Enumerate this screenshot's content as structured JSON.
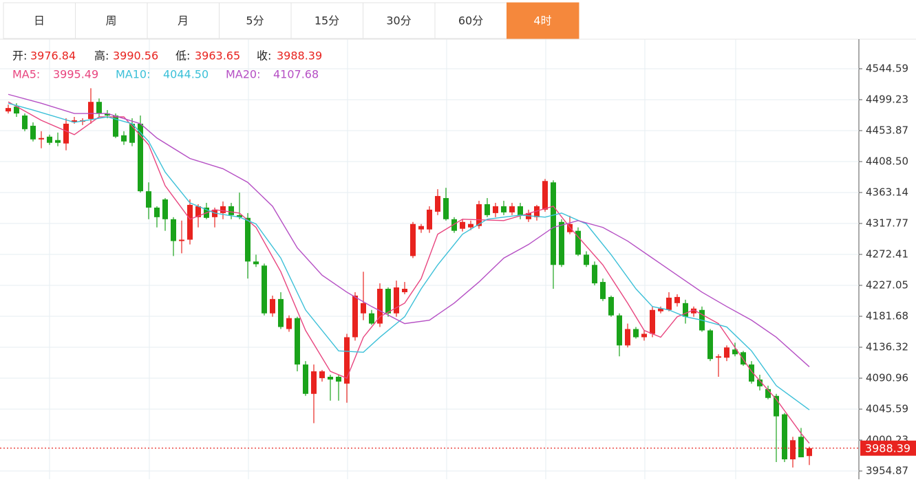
{
  "tabs": {
    "items": [
      "日",
      "周",
      "月",
      "5分",
      "15分",
      "30分",
      "60分",
      "4时"
    ],
    "active": 7,
    "active_color": "#f5883c"
  },
  "info": {
    "open_label": "开:",
    "high_label": "高:",
    "low_label": "低:",
    "close_label": "收:",
    "ma": [
      {
        "label": "MA5:",
        "value": "3995.49"
      },
      {
        "label": "MA10:",
        "value": "4044.50"
      },
      {
        "label": "MA20:",
        "value": "4107.68"
      }
    ]
  },
  "chart_data": {
    "type": "candlestick",
    "up_color": "#e8231f",
    "down_color": "#1aa31a",
    "grid": true,
    "ylim": [
      3942.8,
      4587.9
    ],
    "yticks": [
      4544.59,
      4499.23,
      4453.87,
      {
        "value": 4408.5,
        "label": "4408.50"
      },
      4363.14,
      4317.77,
      4272.41,
      4227.05,
      4181.68,
      4136.32,
      4090.96,
      4045.59,
      4000.23,
      3954.87
    ],
    "ohlc": [
      [
        4482,
        4492,
        4479,
        4487
      ],
      [
        4489,
        4494,
        4474,
        4479
      ],
      [
        4476,
        4479,
        4453,
        4456
      ],
      [
        4461,
        4466,
        4438,
        4441
      ],
      [
        4441,
        4453,
        4428,
        4443
      ],
      [
        4445,
        4448,
        4433,
        4436
      ],
      [
        4440,
        4451,
        4431,
        4436
      ],
      [
        4435,
        4472,
        4425,
        4464
      ],
      [
        4466,
        4474,
        4464,
        4469
      ],
      [
        4467,
        4472,
        4462,
        4469
      ],
      [
        4471,
        4516,
        4464,
        4496
      ],
      [
        4496,
        4501,
        4474,
        4479
      ],
      [
        4479,
        4484,
        4472,
        4476
      ],
      [
        4476,
        4479,
        4443,
        4445
      ],
      [
        4447,
        4453,
        4433,
        4438
      ],
      [
        4464,
        4472,
        4431,
        4436
      ],
      [
        4464,
        4476,
        4363,
        4365
      ],
      [
        4365,
        4378,
        4324,
        4341
      ],
      [
        4341,
        4343,
        4312,
        4327
      ],
      [
        4353,
        4355,
        4307,
        4324
      ],
      [
        4324,
        4327,
        4270,
        4292
      ],
      [
        4292,
        4322,
        4274,
        4294
      ],
      [
        4294,
        4353,
        4287,
        4345
      ],
      [
        4327,
        4346,
        4312,
        4343
      ],
      [
        4341,
        4348,
        4324,
        4326
      ],
      [
        4327,
        4341,
        4312,
        4338
      ],
      [
        4333,
        4350,
        4324,
        4343
      ],
      [
        4343,
        4348,
        4324,
        4330
      ],
      [
        4330,
        4363,
        4324,
        4327
      ],
      [
        4326,
        4333,
        4237,
        4262
      ],
      [
        4262,
        4272,
        4254,
        4258
      ],
      [
        4256,
        4259,
        4183,
        4186
      ],
      [
        4186,
        4212,
        4181,
        4207
      ],
      [
        4207,
        4217,
        4163,
        4166
      ],
      [
        4163,
        4183,
        4159,
        4179
      ],
      [
        4179,
        4181,
        4101,
        4111
      ],
      [
        4111,
        4116,
        4065,
        4068
      ],
      [
        4068,
        4111,
        4025,
        4101
      ],
      [
        4091,
        4103,
        4086,
        4101
      ],
      [
        4093,
        4096,
        4058,
        4089
      ],
      [
        4093,
        4096,
        4058,
        4086
      ],
      [
        4083,
        4156,
        4055,
        4151
      ],
      [
        4151,
        4217,
        4146,
        4212
      ],
      [
        4186,
        4247,
        4176,
        4201
      ],
      [
        4186,
        4191,
        4169,
        4171
      ],
      [
        4171,
        4230,
        4166,
        4222
      ],
      [
        4222,
        4224,
        4181,
        4186
      ],
      [
        4186,
        4234,
        4181,
        4224
      ],
      [
        4217,
        4232,
        4214,
        4222
      ],
      [
        4270,
        4320,
        4267,
        4317
      ],
      [
        4309,
        4317,
        4304,
        4314
      ],
      [
        4309,
        4343,
        4304,
        4338
      ],
      [
        4335,
        4368,
        4330,
        4358
      ],
      [
        4355,
        4370,
        4322,
        4324
      ],
      [
        4324,
        4327,
        4304,
        4307
      ],
      [
        4310,
        4324,
        4306,
        4320
      ],
      [
        4312,
        4322,
        4308,
        4317
      ],
      [
        4314,
        4351,
        4310,
        4346
      ],
      [
        4346,
        4355,
        4327,
        4330
      ],
      [
        4333,
        4348,
        4327,
        4343
      ],
      [
        4343,
        4351,
        4330,
        4334
      ],
      [
        4334,
        4348,
        4330,
        4343
      ],
      [
        4343,
        4348,
        4324,
        4330
      ],
      [
        4324,
        4338,
        4320,
        4333
      ],
      [
        4327,
        4345,
        4322,
        4343
      ],
      [
        4338,
        4383,
        4335,
        4380
      ],
      [
        4378,
        4381,
        4222,
        4257
      ],
      [
        4320,
        4324,
        4254,
        4257
      ],
      [
        4305,
        4329,
        4302,
        4317
      ],
      [
        4307,
        4312,
        4270,
        4272
      ],
      [
        4272,
        4277,
        4254,
        4257
      ],
      [
        4257,
        4262,
        4227,
        4230
      ],
      [
        4232,
        4237,
        4204,
        4207
      ],
      [
        4210,
        4212,
        4181,
        4183
      ],
      [
        4183,
        4186,
        4123,
        4139
      ],
      [
        4139,
        4171,
        4136,
        4163
      ],
      [
        4163,
        4166,
        4149,
        4151
      ],
      [
        4151,
        4161,
        4146,
        4156
      ],
      [
        4156,
        4196,
        4151,
        4191
      ],
      [
        4189,
        4196,
        4186,
        4193
      ],
      [
        4191,
        4217,
        4189,
        4209
      ],
      [
        4201,
        4214,
        4196,
        4210
      ],
      [
        4201,
        4206,
        4171,
        4181
      ],
      [
        4186,
        4196,
        4181,
        4193
      ],
      [
        4191,
        4196,
        4159,
        4161
      ],
      [
        4161,
        4163,
        4116,
        4119
      ],
      [
        4121,
        4126,
        4093,
        4123
      ],
      [
        4121,
        4139,
        4116,
        4136
      ],
      [
        4133,
        4143,
        4123,
        4126
      ],
      [
        4129,
        4131,
        4109,
        4111
      ],
      [
        4111,
        4116,
        4083,
        4086
      ],
      [
        4089,
        4096,
        4073,
        4079
      ],
      [
        4075,
        4080,
        4060,
        4062
      ],
      [
        4065,
        4068,
        3968,
        4035
      ],
      [
        4038,
        4040,
        3968,
        3972
      ],
      [
        3972,
        4005,
        3960,
        4000
      ],
      [
        4005,
        4018,
        3975,
        3975
      ],
      [
        3976.84,
        3990.56,
        3963.65,
        3988.39
      ]
    ],
    "series": [
      {
        "name": "MA5",
        "color": "#e8457f",
        "x": [
          0,
          4,
          8,
          11,
          14,
          17,
          19,
          22,
          25,
          28,
          30,
          33,
          36,
          39,
          41,
          43,
          45,
          48,
          50,
          52,
          55,
          60,
          66,
          68,
          72,
          75,
          77,
          79,
          81,
          83,
          86,
          90,
          93,
          96,
          97
        ],
        "values": [
          4496,
          4469,
          4448,
          4474,
          4474,
          4433,
          4373,
          4324,
          4338,
          4333,
          4312,
          4247,
          4161,
          4101,
          4091,
          4151,
          4181,
          4201,
          4237,
          4302,
          4324,
          4322,
          4343,
          4312,
          4257,
          4201,
          4161,
          4151,
          4181,
          4191,
          4171,
          4101,
          4060,
          4010,
          3995.49
        ]
      },
      {
        "name": "MA10",
        "color": "#3cc0d8",
        "x": [
          0,
          3,
          8,
          12,
          15,
          17,
          19,
          22,
          25,
          28,
          30,
          33,
          36,
          40,
          43,
          45,
          48,
          50,
          52,
          55,
          58,
          62,
          65,
          67,
          70,
          73,
          76,
          78,
          80,
          82,
          84,
          87,
          90,
          93,
          97
        ],
        "values": [
          4494,
          4484,
          4466,
          4474,
          4464,
          4438,
          4393,
          4348,
          4333,
          4327,
          4317,
          4267,
          4191,
          4131,
          4129,
          4151,
          4181,
          4222,
          4257,
          4302,
          4324,
          4330,
          4327,
          4333,
          4317,
          4272,
          4222,
          4196,
          4191,
          4181,
          4176,
          4166,
          4131,
          4080,
          4044.5
        ]
      },
      {
        "name": "MA20",
        "color": "#b54fc4",
        "x": [
          0,
          4,
          8,
          12,
          16,
          18,
          22,
          26,
          29,
          32,
          35,
          38,
          41,
          44,
          48,
          51,
          54,
          57,
          60,
          63,
          66,
          69,
          72,
          75,
          78,
          81,
          84,
          87,
          90,
          93,
          97
        ],
        "values": [
          4507,
          4494,
          4479,
          4479,
          4464,
          4443,
          4413,
          4398,
          4378,
          4343,
          4282,
          4242,
          4217,
          4196,
          4171,
          4176,
          4201,
          4232,
          4267,
          4287,
          4312,
          4322,
          4312,
          4292,
          4267,
          4242,
          4217,
          4196,
          4176,
          4151,
          4107.68
        ]
      }
    ]
  }
}
